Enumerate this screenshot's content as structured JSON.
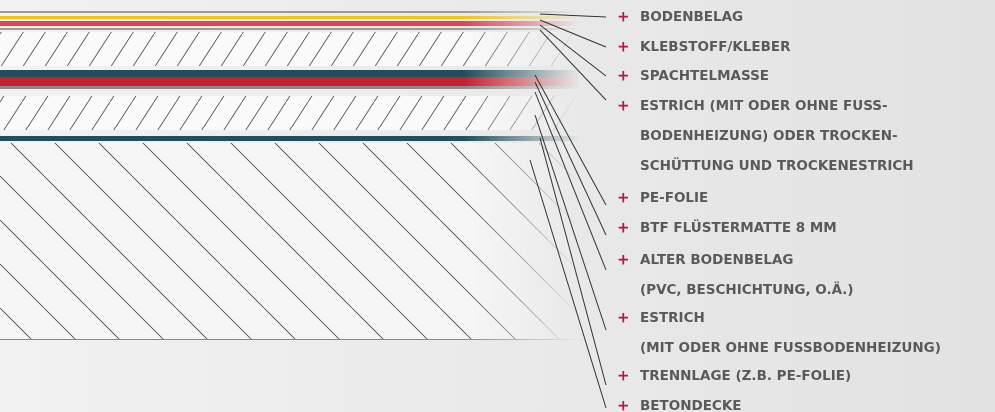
{
  "marker": "+",
  "layers": [
    {
      "lines": [
        "BODENBELAG"
      ]
    },
    {
      "lines": [
        "KLEBSTOFF/KLEBER"
      ]
    },
    {
      "lines": [
        "SPACHTELMASSE"
      ]
    },
    {
      "lines": [
        "ESTRICH (MIT ODER OHNE FUSS-",
        "BODENHEIZUNG) ODER TROCKEN-",
        "SCHÜTTUNG UND TROCKENESTRICH"
      ]
    },
    {
      "lines": [
        "PE-FOLIE"
      ]
    },
    {
      "lines": [
        "BTF FLÜSTERMATTE 8 MM"
      ]
    },
    {
      "lines": [
        "ALTER BODENBELAG",
        "(PVC, BESCHICHTUNG, O.Ä.)"
      ]
    },
    {
      "lines": [
        "ESTRICH",
        "(MIT ODER OHNE FUSSBODENHEIZUNG)"
      ]
    },
    {
      "lines": [
        "TRENNLAGE (Z.B. PE-FOLIE)"
      ]
    },
    {
      "lines": [
        "BETONDECKE"
      ]
    }
  ]
}
